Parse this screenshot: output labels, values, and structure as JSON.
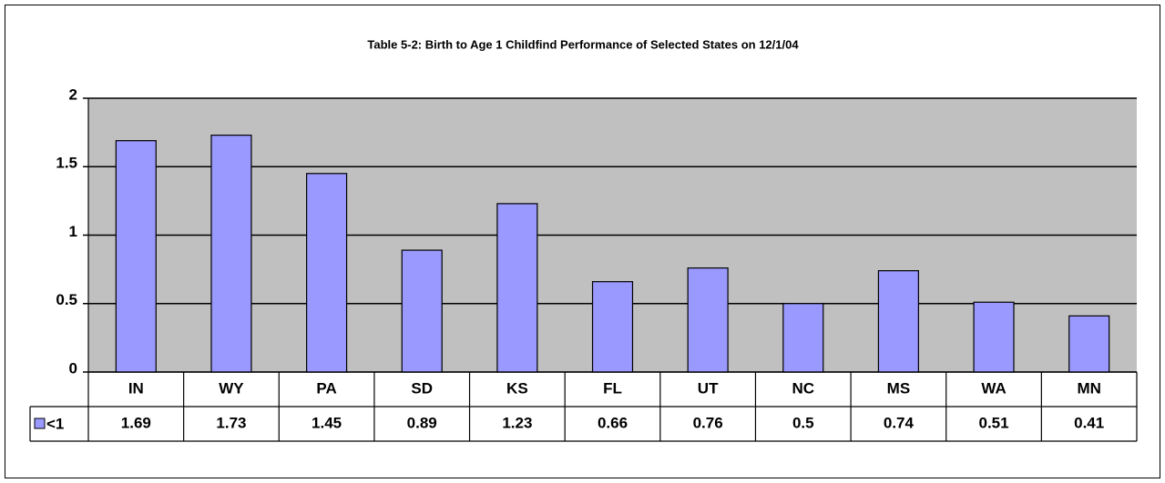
{
  "chart_data": {
    "type": "bar",
    "title": "Table 5-2: Birth to Age 1 Childfind Performance of Selected States on 12/1/04",
    "categories": [
      "IN",
      "WY",
      "PA",
      "SD",
      "KS",
      "FL",
      "UT",
      "NC",
      "MS",
      "WA",
      "MN"
    ],
    "series": [
      {
        "name": "<1",
        "color": "#9999ff",
        "values": [
          1.69,
          1.73,
          1.45,
          0.89,
          1.23,
          0.66,
          0.76,
          0.5,
          0.74,
          0.51,
          0.41
        ]
      }
    ],
    "ylim": [
      0,
      2
    ],
    "yticks": [
      0,
      0.5,
      1,
      1.5,
      2
    ],
    "grid": true
  }
}
